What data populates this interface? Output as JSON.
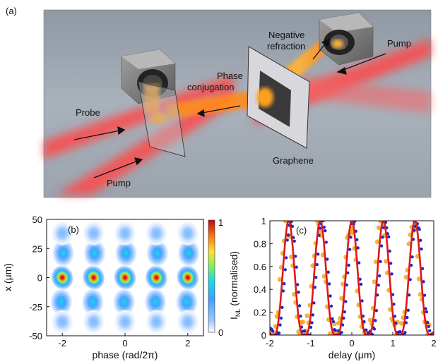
{
  "panel_a": {
    "label": "(a)",
    "labels": {
      "negative_refraction_line1": "Negative",
      "negative_refraction_line2": "refraction",
      "pump_top": "Pump",
      "phase_conjugation_line1": "Phase",
      "phase_conjugation_line2": "conjugation",
      "probe": "Probe",
      "graphene": "Graphene",
      "pump_bottom": "Pump"
    },
    "colors": {
      "background": "#a4acb6",
      "beam_red": "#ff4040",
      "beam_orange": "#ff9a1a",
      "camera": "#7d7d7d"
    },
    "icons": [
      "camera-icon",
      "camera-icon",
      "graphene-sample-icon",
      "beamsplitter-plate-icon"
    ]
  },
  "chart_data": [
    {
      "panel_label": "(b)",
      "type": "heatmap",
      "xlabel": "phase (rad/2π)",
      "ylabel": "x (μm)",
      "xlim": [
        -2.5,
        2.5
      ],
      "ylim": [
        -50,
        50
      ],
      "x_ticks": [
        "-2",
        "0",
        "2"
      ],
      "x_tick_values": [
        -2,
        0,
        2
      ],
      "y_ticks": [
        "50",
        "25",
        "0",
        "-25",
        "-50"
      ],
      "y_tick_values": [
        50,
        25,
        0,
        -25,
        -50
      ],
      "colorbar": {
        "ticks": [
          "1",
          "0"
        ],
        "range": [
          0,
          1
        ],
        "colormap": "jet"
      },
      "lobes": [
        {
          "x_center_um": 0,
          "x_width_um": 9,
          "amplitude": 1.0,
          "phase_offset": 0
        },
        {
          "x_center_um": 21,
          "x_width_um": 10,
          "amplitude": 0.42,
          "phase_offset": 0.03
        },
        {
          "x_center_um": -21,
          "x_width_um": 10,
          "amplitude": 0.42,
          "phase_offset": -0.03
        },
        {
          "x_center_um": 38,
          "x_width_um": 9,
          "amplitude": 0.16,
          "phase_offset": 0.0
        },
        {
          "x_center_um": -38,
          "x_width_um": 9,
          "amplitude": 0.16,
          "phase_offset": 0.0
        }
      ],
      "period": 1
    },
    {
      "panel_label": "(c)",
      "type": "line",
      "xlabel": "delay (μm)",
      "ylabel": "I",
      "ylabel_subscript": "NL",
      "ylabel_suffix": " (normalised)",
      "xlim": [
        -2,
        2
      ],
      "ylim": [
        0,
        1
      ],
      "x_ticks": [
        "-2",
        "-1",
        "0",
        "1",
        "2"
      ],
      "x_tick_values": [
        -2,
        -1,
        0,
        1,
        2
      ],
      "y_ticks": [
        "1",
        "0.8",
        "0.6",
        "0.4",
        "0.2",
        "0"
      ],
      "y_tick_values": [
        1,
        0.8,
        0.6,
        0.4,
        0.2,
        0
      ],
      "series": [
        {
          "style": "line",
          "color": "#e01818",
          "period": 0.77,
          "peak_at": 0.0
        },
        {
          "style": "dots",
          "color": "#1a2ad0",
          "period": 0.77,
          "peak_at": 0.05
        },
        {
          "style": "dots",
          "color": "#f5a31c",
          "period": 0.77,
          "peak_at": -0.04
        }
      ]
    }
  ]
}
